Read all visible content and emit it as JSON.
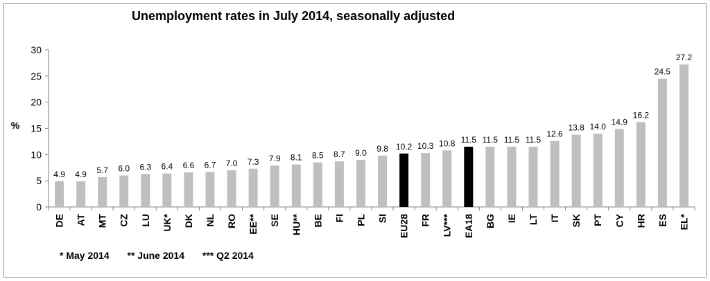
{
  "chart_data": {
    "type": "bar",
    "title": "Unemployment rates in July 2014, seasonally adjusted",
    "ylabel": "%",
    "xlabel": "",
    "ylim": [
      0,
      30
    ],
    "yticks": [
      0,
      5,
      10,
      15,
      20,
      25,
      30
    ],
    "grid": false,
    "categories": [
      "DE",
      "AT",
      "MT",
      "CZ",
      "LU",
      "UK*",
      "DK",
      "NL",
      "RO",
      "EE**",
      "SE",
      "HU**",
      "BE",
      "FI",
      "PL",
      "SI",
      "EU28",
      "FR",
      "LV***",
      "EA18",
      "BG",
      "IE",
      "LT",
      "IT",
      "SK",
      "PT",
      "CY",
      "HR",
      "ES",
      "EL*"
    ],
    "values": [
      4.9,
      4.9,
      5.7,
      6.0,
      6.3,
      6.4,
      6.6,
      6.7,
      7.0,
      7.3,
      7.9,
      8.1,
      8.5,
      8.7,
      9.0,
      9.8,
      10.2,
      10.3,
      10.8,
      11.5,
      11.5,
      11.5,
      11.5,
      12.6,
      13.8,
      14.0,
      14.9,
      16.2,
      24.5,
      27.2
    ],
    "data_labels": [
      "4.9",
      "4.9",
      "5.7",
      "6.0",
      "6.3",
      "6.4",
      "6.6",
      "6.7",
      "7.0",
      "7.3",
      "7.9",
      "8.1",
      "8.5",
      "8.7",
      "9.0",
      "9.8",
      "10.2",
      "10.3",
      "10.8",
      "11.5",
      "11.5",
      "11.5",
      "11.5",
      "12.6",
      "13.8",
      "14.0",
      "14.9",
      "16.2",
      "24.5",
      "27.2"
    ],
    "highlighted": [
      "EU28",
      "EA18"
    ],
    "colors": {
      "bar": "#bfbfbf",
      "highlight": "#000000",
      "axis": "#808080"
    }
  },
  "footnotes": [
    "* May 2014",
    "** June 2014",
    "*** Q2 2014"
  ]
}
